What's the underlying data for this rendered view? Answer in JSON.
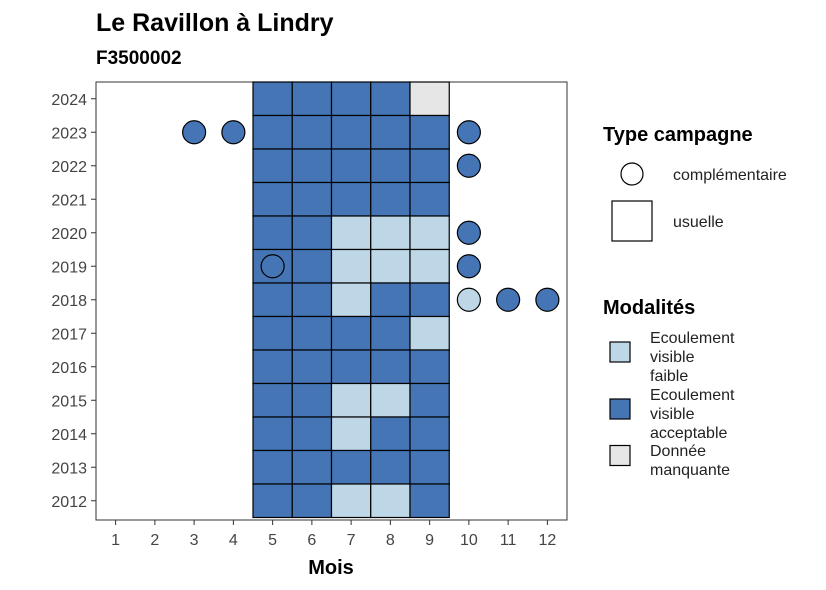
{
  "chart_data": {
    "type": "heatmap",
    "title": "Le Ravillon à Lindry",
    "subtitle": "F3500002",
    "xlabel": "Mois",
    "ylabel": "",
    "x_ticks": [
      "1",
      "2",
      "3",
      "4",
      "5",
      "6",
      "7",
      "8",
      "9",
      "10",
      "11",
      "12"
    ],
    "y_ticks": [
      "2012",
      "2013",
      "2014",
      "2015",
      "2016",
      "2017",
      "2018",
      "2019",
      "2020",
      "2021",
      "2022",
      "2023",
      "2024"
    ],
    "xlim": [
      0.5,
      12.5
    ],
    "ylim": [
      2011.5,
      2024.5
    ],
    "grid": false,
    "colors": {
      "faible": "#bdd7e7",
      "acceptable": "#4575b4",
      "manquante": "#e6e6e6",
      "border": "#000000",
      "circle_empty": "#ffffff"
    },
    "legend_type": {
      "title": "Type campagne",
      "items": [
        {
          "shape": "circle",
          "label": "complémentaire"
        },
        {
          "shape": "square",
          "label": "usuelle"
        }
      ]
    },
    "legend_modalites": {
      "title": "Modalités",
      "items": [
        {
          "key": "faible",
          "lines": [
            "Ecoulement",
            "visible",
            "faible"
          ]
        },
        {
          "key": "acceptable",
          "lines": [
            "Ecoulement",
            "visible",
            "acceptable"
          ]
        },
        {
          "key": "manquante",
          "lines": [
            "Donnée",
            "manquante"
          ]
        }
      ]
    },
    "squares": [
      {
        "year": 2024,
        "month": 5,
        "value": "acceptable"
      },
      {
        "year": 2024,
        "month": 6,
        "value": "acceptable"
      },
      {
        "year": 2024,
        "month": 7,
        "value": "acceptable"
      },
      {
        "year": 2024,
        "month": 8,
        "value": "acceptable"
      },
      {
        "year": 2024,
        "month": 9,
        "value": "manquante"
      },
      {
        "year": 2023,
        "month": 5,
        "value": "acceptable"
      },
      {
        "year": 2023,
        "month": 6,
        "value": "acceptable"
      },
      {
        "year": 2023,
        "month": 7,
        "value": "acceptable"
      },
      {
        "year": 2023,
        "month": 8,
        "value": "acceptable"
      },
      {
        "year": 2023,
        "month": 9,
        "value": "acceptable"
      },
      {
        "year": 2022,
        "month": 5,
        "value": "acceptable"
      },
      {
        "year": 2022,
        "month": 6,
        "value": "acceptable"
      },
      {
        "year": 2022,
        "month": 7,
        "value": "acceptable"
      },
      {
        "year": 2022,
        "month": 8,
        "value": "acceptable"
      },
      {
        "year": 2022,
        "month": 9,
        "value": "acceptable"
      },
      {
        "year": 2021,
        "month": 5,
        "value": "acceptable"
      },
      {
        "year": 2021,
        "month": 6,
        "value": "acceptable"
      },
      {
        "year": 2021,
        "month": 7,
        "value": "acceptable"
      },
      {
        "year": 2021,
        "month": 8,
        "value": "acceptable"
      },
      {
        "year": 2021,
        "month": 9,
        "value": "acceptable"
      },
      {
        "year": 2020,
        "month": 5,
        "value": "acceptable"
      },
      {
        "year": 2020,
        "month": 6,
        "value": "acceptable"
      },
      {
        "year": 2020,
        "month": 7,
        "value": "faible"
      },
      {
        "year": 2020,
        "month": 8,
        "value": "faible"
      },
      {
        "year": 2020,
        "month": 9,
        "value": "faible"
      },
      {
        "year": 2019,
        "month": 5,
        "value": "acceptable"
      },
      {
        "year": 2019,
        "month": 6,
        "value": "acceptable"
      },
      {
        "year": 2019,
        "month": 7,
        "value": "faible"
      },
      {
        "year": 2019,
        "month": 8,
        "value": "faible"
      },
      {
        "year": 2019,
        "month": 9,
        "value": "faible"
      },
      {
        "year": 2018,
        "month": 5,
        "value": "acceptable"
      },
      {
        "year": 2018,
        "month": 6,
        "value": "acceptable"
      },
      {
        "year": 2018,
        "month": 7,
        "value": "faible"
      },
      {
        "year": 2018,
        "month": 8,
        "value": "acceptable"
      },
      {
        "year": 2018,
        "month": 9,
        "value": "acceptable"
      },
      {
        "year": 2017,
        "month": 5,
        "value": "acceptable"
      },
      {
        "year": 2017,
        "month": 6,
        "value": "acceptable"
      },
      {
        "year": 2017,
        "month": 7,
        "value": "acceptable"
      },
      {
        "year": 2017,
        "month": 8,
        "value": "acceptable"
      },
      {
        "year": 2017,
        "month": 9,
        "value": "faible"
      },
      {
        "year": 2016,
        "month": 5,
        "value": "acceptable"
      },
      {
        "year": 2016,
        "month": 6,
        "value": "acceptable"
      },
      {
        "year": 2016,
        "month": 7,
        "value": "acceptable"
      },
      {
        "year": 2016,
        "month": 8,
        "value": "acceptable"
      },
      {
        "year": 2016,
        "month": 9,
        "value": "acceptable"
      },
      {
        "year": 2015,
        "month": 5,
        "value": "acceptable"
      },
      {
        "year": 2015,
        "month": 6,
        "value": "acceptable"
      },
      {
        "year": 2015,
        "month": 7,
        "value": "faible"
      },
      {
        "year": 2015,
        "month": 8,
        "value": "faible"
      },
      {
        "year": 2015,
        "month": 9,
        "value": "acceptable"
      },
      {
        "year": 2014,
        "month": 5,
        "value": "acceptable"
      },
      {
        "year": 2014,
        "month": 6,
        "value": "acceptable"
      },
      {
        "year": 2014,
        "month": 7,
        "value": "faible"
      },
      {
        "year": 2014,
        "month": 8,
        "value": "acceptable"
      },
      {
        "year": 2014,
        "month": 9,
        "value": "acceptable"
      },
      {
        "year": 2013,
        "month": 5,
        "value": "acceptable"
      },
      {
        "year": 2013,
        "month": 6,
        "value": "acceptable"
      },
      {
        "year": 2013,
        "month": 7,
        "value": "acceptable"
      },
      {
        "year": 2013,
        "month": 8,
        "value": "acceptable"
      },
      {
        "year": 2013,
        "month": 9,
        "value": "acceptable"
      },
      {
        "year": 2012,
        "month": 5,
        "value": "acceptable"
      },
      {
        "year": 2012,
        "month": 6,
        "value": "acceptable"
      },
      {
        "year": 2012,
        "month": 7,
        "value": "faible"
      },
      {
        "year": 2012,
        "month": 8,
        "value": "faible"
      },
      {
        "year": 2012,
        "month": 9,
        "value": "acceptable"
      }
    ],
    "circles": [
      {
        "year": 2023,
        "month": 3,
        "value": "acceptable"
      },
      {
        "year": 2023,
        "month": 4,
        "value": "acceptable"
      },
      {
        "year": 2023,
        "month": 10,
        "value": "acceptable"
      },
      {
        "year": 2022,
        "month": 10,
        "value": "acceptable"
      },
      {
        "year": 2020,
        "month": 10,
        "value": "acceptable"
      },
      {
        "year": 2019,
        "month": 5,
        "value": "acceptable"
      },
      {
        "year": 2019,
        "month": 10,
        "value": "acceptable"
      },
      {
        "year": 2018,
        "month": 10,
        "value": "faible"
      },
      {
        "year": 2018,
        "month": 11,
        "value": "acceptable"
      },
      {
        "year": 2018,
        "month": 12,
        "value": "acceptable"
      }
    ]
  }
}
